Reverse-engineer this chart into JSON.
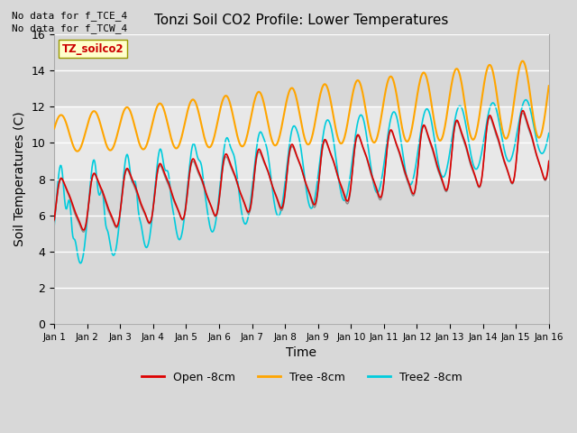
{
  "title": "Tonzi Soil CO2 Profile: Lower Temperatures",
  "xlabel": "Time",
  "ylabel": "Soil Temperatures (C)",
  "annotation_lines": [
    "No data for f_TCE_4",
    "No data for f_TCW_4"
  ],
  "watermark": "TZ_soilco2",
  "ylim": [
    0,
    16
  ],
  "n_days": 15,
  "xtick_labels": [
    "Jan 1",
    "Jan 2",
    "Jan 3",
    "Jan 4",
    "Jan 5",
    "Jan 6",
    "Jan 7",
    "Jan 8",
    "Jan 9",
    "Jan 10",
    "Jan 11",
    "Jan 12",
    "Jan 13",
    "Jan 14",
    "Jan 15",
    "Jan 16"
  ],
  "background_color": "#d8d8d8",
  "plot_bg_color": "#d8d8d8",
  "open_color": "#dd0000",
  "tree_color": "#ffa500",
  "tree2_color": "#00ccdd",
  "gray_color": "#888888",
  "legend_open": "Open -8cm",
  "legend_tree": "Tree -8cm",
  "legend_tree2": "Tree2 -8cm"
}
